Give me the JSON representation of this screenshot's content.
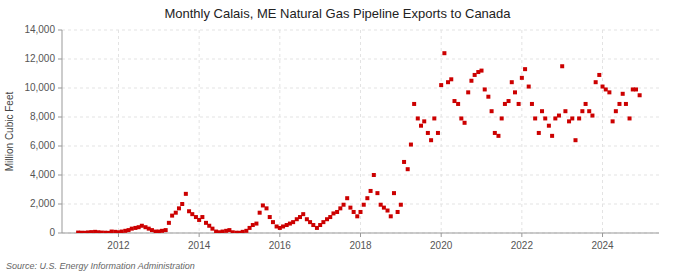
{
  "chart_data": {
    "type": "scatter",
    "title": "Monthly Calais, ME Natural Gas Pipeline Exports to Canada",
    "ylabel": "Million Cubic Feet",
    "source": "Source: U.S. Energy Information Administration",
    "color": "#cc0000",
    "marker": "square",
    "grid": true,
    "xlim": [
      2010.6,
      2025.4
    ],
    "xticks": [
      2012,
      2014,
      2016,
      2018,
      2020,
      2022,
      2024
    ],
    "ylim": [
      0,
      14000
    ],
    "yticks": [
      0,
      {
        "value": 2000,
        "label": "2,000"
      },
      {
        "value": 4000,
        "label": "4,000"
      },
      {
        "value": 6000,
        "label": "6,000"
      },
      {
        "value": 8000,
        "label": "8,000"
      },
      {
        "value": 10000,
        "label": "10,000"
      },
      {
        "value": 12000,
        "label": "12,000"
      },
      {
        "value": 14000,
        "label": "14,000"
      }
    ],
    "x": [
      2011.0,
      2011.08,
      2011.17,
      2011.25,
      2011.33,
      2011.42,
      2011.5,
      2011.58,
      2011.67,
      2011.75,
      2011.83,
      2011.92,
      2012.0,
      2012.08,
      2012.17,
      2012.25,
      2012.33,
      2012.42,
      2012.5,
      2012.58,
      2012.67,
      2012.75,
      2012.83,
      2012.92,
      2013.0,
      2013.08,
      2013.17,
      2013.25,
      2013.33,
      2013.42,
      2013.5,
      2013.58,
      2013.67,
      2013.75,
      2013.83,
      2013.92,
      2014.0,
      2014.08,
      2014.17,
      2014.25,
      2014.33,
      2014.42,
      2014.5,
      2014.58,
      2014.67,
      2014.75,
      2014.83,
      2014.92,
      2015.0,
      2015.08,
      2015.17,
      2015.25,
      2015.33,
      2015.42,
      2015.5,
      2015.58,
      2015.67,
      2015.75,
      2015.83,
      2015.92,
      2016.0,
      2016.08,
      2016.17,
      2016.25,
      2016.33,
      2016.42,
      2016.5,
      2016.58,
      2016.67,
      2016.75,
      2016.83,
      2016.92,
      2017.0,
      2017.08,
      2017.17,
      2017.25,
      2017.33,
      2017.42,
      2017.5,
      2017.58,
      2017.67,
      2017.75,
      2017.83,
      2017.92,
      2018.0,
      2018.08,
      2018.17,
      2018.25,
      2018.33,
      2018.42,
      2018.5,
      2018.58,
      2018.67,
      2018.75,
      2018.83,
      2018.92,
      2019.0,
      2019.08,
      2019.17,
      2019.25,
      2019.33,
      2019.42,
      2019.5,
      2019.58,
      2019.67,
      2019.75,
      2019.83,
      2019.92,
      2020.0,
      2020.08,
      2020.17,
      2020.25,
      2020.33,
      2020.42,
      2020.5,
      2020.58,
      2020.67,
      2020.75,
      2020.83,
      2020.92,
      2021.0,
      2021.08,
      2021.17,
      2021.25,
      2021.33,
      2021.42,
      2021.5,
      2021.58,
      2021.67,
      2021.75,
      2021.83,
      2021.92,
      2022.0,
      2022.08,
      2022.17,
      2022.25,
      2022.33,
      2022.42,
      2022.5,
      2022.58,
      2022.67,
      2022.75,
      2022.83,
      2022.92,
      2023.0,
      2023.08,
      2023.17,
      2023.25,
      2023.33,
      2023.42,
      2023.5,
      2023.58,
      2023.67,
      2023.75,
      2023.83,
      2023.92,
      2024.0,
      2024.08,
      2024.17,
      2024.25,
      2024.33,
      2024.42,
      2024.5,
      2024.58,
      2024.67,
      2024.75,
      2024.83,
      2024.92
    ],
    "values": [
      30,
      20,
      15,
      40,
      60,
      80,
      50,
      30,
      20,
      10,
      100,
      80,
      50,
      100,
      150,
      200,
      300,
      350,
      400,
      500,
      400,
      300,
      200,
      100,
      100,
      150,
      200,
      700,
      1200,
      1400,
      1700,
      2000,
      2700,
      1500,
      1300,
      1100,
      900,
      1100,
      700,
      500,
      300,
      100,
      50,
      100,
      150,
      200,
      50,
      20,
      15,
      80,
      150,
      350,
      550,
      650,
      1400,
      1900,
      1700,
      1100,
      750,
      450,
      350,
      450,
      550,
      650,
      750,
      950,
      1100,
      1300,
      950,
      750,
      550,
      350,
      550,
      750,
      950,
      1100,
      1350,
      1450,
      1700,
      1950,
      2400,
      1750,
      1450,
      1150,
      1450,
      1950,
      2400,
      2900,
      4000,
      2750,
      1950,
      1750,
      1550,
      1150,
      2750,
      1450,
      1950,
      4900,
      4400,
      6100,
      8900,
      7900,
      7400,
      7700,
      6900,
      6400,
      7900,
      6900,
      10200,
      12400,
      10400,
      10600,
      9100,
      8900,
      7900,
      7600,
      9700,
      10500,
      10900,
      11100,
      11200,
      9900,
      9400,
      8400,
      6900,
      6700,
      7900,
      8900,
      9100,
      10400,
      9700,
      8900,
      10700,
      11300,
      10100,
      8900,
      7900,
      6900,
      8400,
      7900,
      7400,
      6700,
      7900,
      8100,
      11500,
      8400,
      7700,
      7900,
      6400,
      7900,
      8400,
      8900,
      8400,
      8100,
      10400,
      10900,
      10100,
      9900,
      9700,
      7700,
      8400,
      8900,
      9600,
      8900,
      7900,
      9900,
      9900,
      9500
    ]
  }
}
